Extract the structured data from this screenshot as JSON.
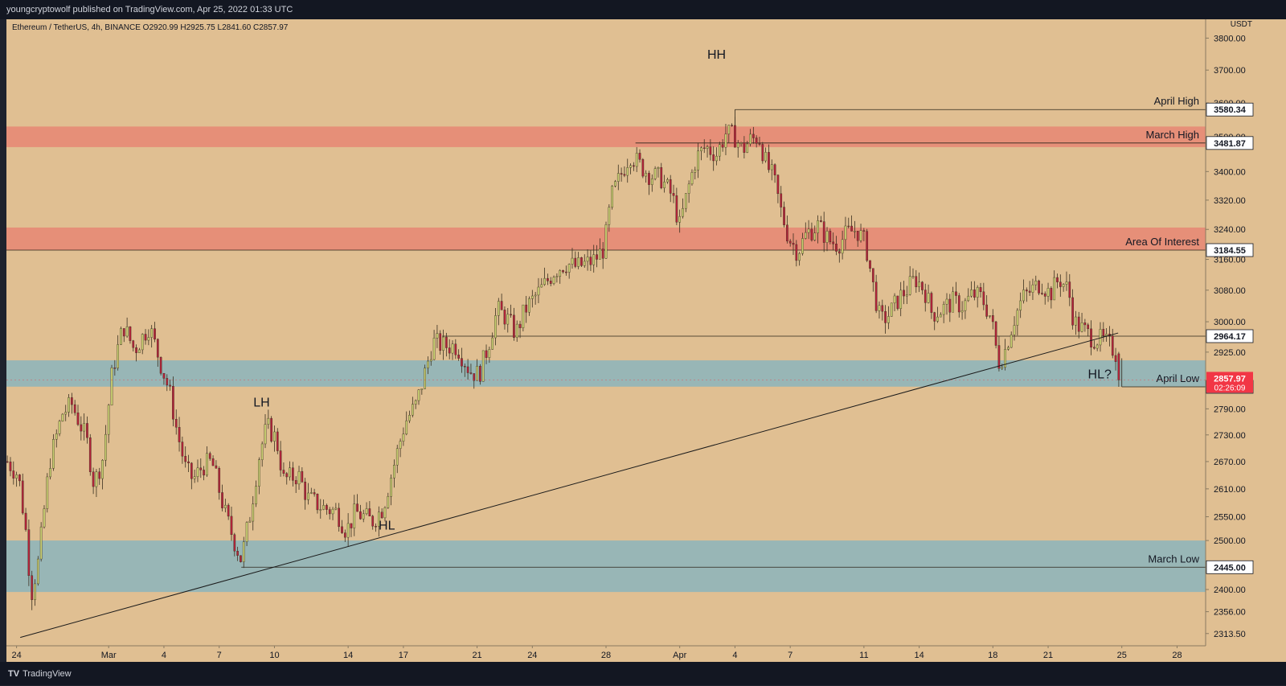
{
  "header": {
    "publish_line": "youngcryptowolf published on TradingView.com, Apr 25, 2022 01:33 UTC"
  },
  "footer": {
    "logo_text": "TV",
    "brand": "TradingView"
  },
  "symbol_legend": "Ethereum / TetherUS, 4h, BINANCE  O2920.99  H2925.75  L2841.60  C2857.97",
  "colors": {
    "background": "#e0bf92",
    "red_zone": "#e68f78",
    "blue_zone": "#98b6b6",
    "up_candle": "#c9cf72",
    "down_candle": "#b4233a",
    "price_tag": "#f23645",
    "axis_text": "#131722"
  },
  "chart_data": {
    "type": "candlestick",
    "title": "",
    "xlabel": "",
    "ylabel": "USDT",
    "axis_unit": "USDT",
    "scale": "log",
    "ylim": [
      2290,
      3860
    ],
    "y_ticks": [
      2313.5,
      2356.0,
      2400.0,
      2445.0,
      2500.0,
      2550.0,
      2610.0,
      2670.0,
      2730.0,
      2790.0,
      2925.0,
      3000.0,
      3080.0,
      3160.0,
      3240.0,
      3320.0,
      3400.0,
      3500.0,
      3600.0,
      3700.0,
      3800.0
    ],
    "y_tick_labels": [
      "2313.50",
      "2356.00",
      "2400.00",
      "2445.00",
      "2500.00",
      "2550.00",
      "2610.00",
      "2670.00",
      "2730.00",
      "2790.00",
      "2925.00",
      "3000.00",
      "3080.00",
      "3160.00",
      "3240.00",
      "3320.00",
      "3400.00",
      "3500.00",
      "3600.00",
      "3700.00",
      "3800.00"
    ],
    "x_ticks": [
      {
        "label": "24",
        "day": 0
      },
      {
        "label": "Mar",
        "day": 5
      },
      {
        "label": "4",
        "day": 8
      },
      {
        "label": "7",
        "day": 11
      },
      {
        "label": "10",
        "day": 14
      },
      {
        "label": "14",
        "day": 18
      },
      {
        "label": "17",
        "day": 21
      },
      {
        "label": "21",
        "day": 25
      },
      {
        "label": "24",
        "day": 28
      },
      {
        "label": "28",
        "day": 32
      },
      {
        "label": "Apr",
        "day": 36
      },
      {
        "label": "4",
        "day": 39
      },
      {
        "label": "7",
        "day": 42
      },
      {
        "label": "11",
        "day": 46
      },
      {
        "label": "14",
        "day": 49
      },
      {
        "label": "18",
        "day": 53
      },
      {
        "label": "21",
        "day": 56
      },
      {
        "label": "25",
        "day": 60
      },
      {
        "label": "28",
        "day": 63
      }
    ],
    "xlim_days": [
      -0.55,
      64.55
    ],
    "candles_per_day": 6,
    "close_path": [
      [
        -0.5,
        2670
      ],
      [
        0.1,
        2640
      ],
      [
        0.5,
        2520
      ],
      [
        0.8,
        2390
      ],
      [
        1.2,
        2460
      ],
      [
        1.8,
        2670
      ],
      [
        2.5,
        2780
      ],
      [
        3.0,
        2800
      ],
      [
        3.8,
        2720
      ],
      [
        4.2,
        2620
      ],
      [
        4.7,
        2680
      ],
      [
        5.2,
        2880
      ],
      [
        5.8,
        2990
      ],
      [
        6.4,
        2930
      ],
      [
        7.2,
        2990
      ],
      [
        7.8,
        2900
      ],
      [
        8.3,
        2830
      ],
      [
        8.7,
        2740
      ],
      [
        9.2,
        2650
      ],
      [
        9.6,
        2630
      ],
      [
        10.1,
        2660
      ],
      [
        10.6,
        2670
      ],
      [
        11.3,
        2560
      ],
      [
        11.8,
        2500
      ],
      [
        12.2,
        2460
      ],
      [
        12.7,
        2560
      ],
      [
        13.2,
        2690
      ],
      [
        13.6,
        2750
      ],
      [
        14.1,
        2720
      ],
      [
        14.5,
        2630
      ],
      [
        15.3,
        2640
      ],
      [
        15.8,
        2590
      ],
      [
        16.6,
        2570
      ],
      [
        17.4,
        2560
      ],
      [
        17.9,
        2520
      ],
      [
        18.4,
        2560
      ],
      [
        19.3,
        2540
      ],
      [
        19.9,
        2570
      ],
      [
        20.6,
        2680
      ],
      [
        21.1,
        2760
      ],
      [
        21.7,
        2800
      ],
      [
        22.2,
        2880
      ],
      [
        22.6,
        2950
      ],
      [
        23.2,
        2940
      ],
      [
        23.9,
        2940
      ],
      [
        24.6,
        2880
      ],
      [
        25.1,
        2870
      ],
      [
        25.6,
        2940
      ],
      [
        26.1,
        3030
      ],
      [
        26.6,
        3010
      ],
      [
        27.1,
        2970
      ],
      [
        27.6,
        3030
      ],
      [
        28.1,
        3060
      ],
      [
        28.6,
        3090
      ],
      [
        29.2,
        3130
      ],
      [
        29.8,
        3150
      ],
      [
        30.4,
        3140
      ],
      [
        31.0,
        3150
      ],
      [
        31.4,
        3160
      ],
      [
        31.9,
        3190
      ],
      [
        32.3,
        3330
      ],
      [
        32.8,
        3390
      ],
      [
        33.3,
        3450
      ],
      [
        33.8,
        3420
      ],
      [
        34.4,
        3390
      ],
      [
        35.0,
        3380
      ],
      [
        35.6,
        3330
      ],
      [
        36.0,
        3250
      ],
      [
        36.5,
        3360
      ],
      [
        36.9,
        3440
      ],
      [
        37.4,
        3470
      ],
      [
        38.0,
        3450
      ],
      [
        38.5,
        3510
      ],
      [
        39.0,
        3500
      ],
      [
        39.4,
        3460
      ],
      [
        39.8,
        3490
      ],
      [
        40.3,
        3500
      ],
      [
        40.7,
        3420
      ],
      [
        41.1,
        3380
      ],
      [
        41.5,
        3290
      ],
      [
        41.9,
        3220
      ],
      [
        42.4,
        3180
      ],
      [
        42.9,
        3230
      ],
      [
        43.5,
        3250
      ],
      [
        44.1,
        3210
      ],
      [
        44.6,
        3200
      ],
      [
        45.1,
        3230
      ],
      [
        45.6,
        3240
      ],
      [
        46.1,
        3200
      ],
      [
        46.5,
        3090
      ],
      [
        46.9,
        3000
      ],
      [
        47.4,
        3020
      ],
      [
        47.9,
        3060
      ],
      [
        48.3,
        3080
      ],
      [
        48.8,
        3110
      ],
      [
        49.3,
        3080
      ],
      [
        49.7,
        3020
      ],
      [
        50.2,
        3030
      ],
      [
        50.8,
        3050
      ],
      [
        51.4,
        3040
      ],
      [
        51.9,
        3070
      ],
      [
        52.4,
        3060
      ],
      [
        52.9,
        3010
      ],
      [
        53.3,
        2900
      ],
      [
        53.6,
        2920
      ],
      [
        54.1,
        3000
      ],
      [
        54.6,
        3060
      ],
      [
        55.1,
        3080
      ],
      [
        55.6,
        3100
      ],
      [
        56.1,
        3070
      ],
      [
        56.6,
        3110
      ],
      [
        57.1,
        3080
      ],
      [
        57.4,
        3000
      ],
      [
        57.9,
        2980
      ],
      [
        58.4,
        2960
      ],
      [
        58.9,
        2955
      ],
      [
        59.4,
        2940
      ],
      [
        59.7,
        2920
      ],
      [
        59.9,
        2858
      ]
    ],
    "current": {
      "open": 2920.99,
      "high": 2925.75,
      "low": 2841.6,
      "close": 2857.97
    },
    "zones": [
      {
        "kind": "resistance",
        "from": 3470,
        "to": 3530
      },
      {
        "kind": "resistance",
        "from": 3184.55,
        "to": 3245
      },
      {
        "kind": "support",
        "from": 2842,
        "to": 2905
      },
      {
        "kind": "support",
        "from": 2395,
        "to": 2500
      }
    ],
    "levels": [
      {
        "label": "April High",
        "price": 3580.34,
        "price_label": "3580.34",
        "from_day": 39.0
      },
      {
        "label": "March High",
        "price": 3481.87,
        "price_label": "3481.87",
        "from_day": 33.6
      },
      {
        "label": "Area Of Interest",
        "price": 3184.55,
        "price_label": "3184.55",
        "from_day": -0.55
      },
      {
        "label": "",
        "price": 2964.17,
        "price_label": "2964.17",
        "from_day": 23.1
      },
      {
        "label": "April Low",
        "price": 2841.6,
        "price_label": "2841.60",
        "from_day": 60.0
      },
      {
        "label": "March Low",
        "price": 2445.0,
        "price_label": "2445.00",
        "from_day": 12.2
      }
    ],
    "trendline": {
      "from": {
        "day": 0.2,
        "price": 2306
      },
      "to": {
        "day": 59.8,
        "price": 2972
      }
    },
    "annotations": [
      {
        "text": "HH",
        "day": 38.0,
        "price": 3735
      },
      {
        "text": "LH",
        "day": 13.3,
        "price": 2795
      },
      {
        "text": "HL",
        "day": 20.1,
        "price": 2523
      },
      {
        "text": "HL?",
        "day": 58.8,
        "price": 2862
      }
    ],
    "last_price": {
      "value": 2857.97,
      "label": "2857.97",
      "countdown": "02:26:09"
    },
    "grid": false,
    "legend": "top-left"
  }
}
